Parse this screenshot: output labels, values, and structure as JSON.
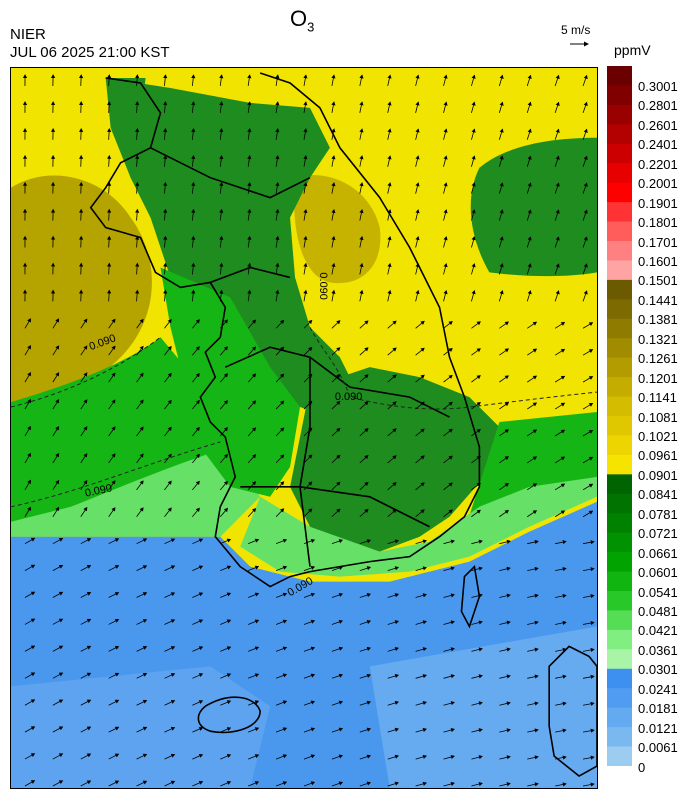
{
  "header": {
    "agency": "NIER",
    "datetime": "JUL 06 2025 21:00 KST",
    "title_main": "O",
    "title_sub": "3",
    "vector_scale_label": "5 m/s",
    "unit": "ppmV"
  },
  "colorbar": {
    "labels": [
      "0.3001",
      "0.2801",
      "0.2601",
      "0.2401",
      "0.2201",
      "0.2001",
      "0.1901",
      "0.1801",
      "0.1701",
      "0.1601",
      "0.1501",
      "0.1441",
      "0.1381",
      "0.1321",
      "0.1261",
      "0.1201",
      "0.1141",
      "0.1081",
      "0.1021",
      "0.0961",
      "0.0901",
      "0.0841",
      "0.0781",
      "0.0721",
      "0.0661",
      "0.0601",
      "0.0541",
      "0.0481",
      "0.0421",
      "0.0361",
      "0.0301",
      "0.0241",
      "0.0181",
      "0.0121",
      "0.0061",
      "0"
    ],
    "colors": [
      "#6b0000",
      "#800000",
      "#990000",
      "#b30000",
      "#cc0000",
      "#e60000",
      "#ff0000",
      "#ff3333",
      "#ff5c5c",
      "#ff8080",
      "#ffa3a3",
      "#6b5a00",
      "#7d6a00",
      "#8f7b00",
      "#a18c00",
      "#b39c00",
      "#c5ad00",
      "#d4bc00",
      "#e0c800",
      "#ecd500",
      "#f7e300",
      "#006400",
      "#007300",
      "#008200",
      "#009200",
      "#00a300",
      "#10b510",
      "#28c828",
      "#55dd55",
      "#80ee80",
      "#a8f5a8",
      "#3d8ff0",
      "#4f9cf0",
      "#63aaf0",
      "#7ab8f0",
      "#9cccf0"
    ]
  },
  "map": {
    "contour_labels": [
      "0.090",
      "0.090",
      "0.090",
      "0.090",
      "0.090"
    ],
    "colors": {
      "yellow": "#f0e400",
      "olive": "#b5a400",
      "green_dark": "#1f8c1f",
      "green_mid": "#15b515",
      "green_light": "#66e066",
      "blue": "#4a98ee",
      "blue_light": "#66aaf0"
    }
  }
}
